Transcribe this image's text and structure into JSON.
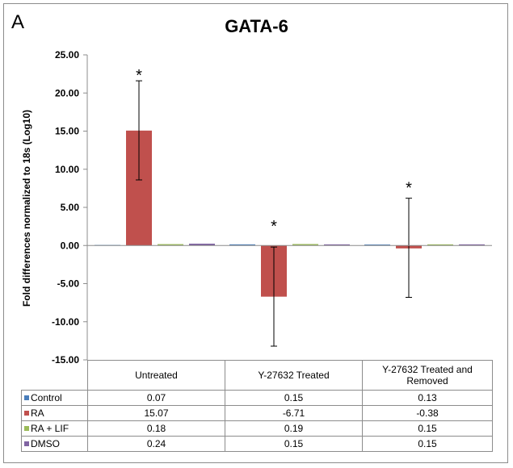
{
  "panel_letter": "A",
  "chart_data": {
    "type": "bar",
    "title": "GATA-6",
    "xlabel": "",
    "ylabel": "Fold differences  normalized to 18s (Log10)",
    "ylim": [
      -15,
      25
    ],
    "yticks": [
      "25.00",
      "20.00",
      "15.00",
      "10.00",
      "5.00",
      "0.00",
      "-5.00",
      "-10.00",
      "-15.00"
    ],
    "yticks_values": [
      25,
      20,
      15,
      10,
      5,
      0,
      -5,
      -10,
      -15
    ],
    "categories": [
      "Untreated",
      "Y-27632 Treated",
      "Y-27632 Treated and Removed"
    ],
    "series": [
      {
        "name": "Control",
        "color": "#4a7ebb",
        "values": [
          0.07,
          0.15,
          0.13
        ],
        "values_text": [
          "0.07",
          "0.15",
          "0.13"
        ]
      },
      {
        "name": "RA",
        "color": "#c0504d",
        "values": [
          15.07,
          -6.71,
          -0.38
        ],
        "values_text": [
          "15.07",
          "-6.71",
          "-0.38"
        ],
        "error": [
          [
            8.6,
            21.6
          ],
          [
            -13.2,
            -0.2
          ],
          [
            -6.8,
            6.2
          ]
        ]
      },
      {
        "name": "RA + LIF",
        "color": "#9bbb59",
        "values": [
          0.18,
          0.19,
          0.15
        ],
        "values_text": [
          "0.18",
          "0.19",
          "0.15"
        ]
      },
      {
        "name": "DMSO",
        "color": "#8064a2",
        "values": [
          0.24,
          0.15,
          0.15
        ],
        "values_text": [
          "0.24",
          "0.15",
          "0.15"
        ]
      }
    ],
    "annotations": [
      {
        "text": "*",
        "category": 0,
        "y": 22.8
      },
      {
        "text": "*",
        "category": 1,
        "y": 3.0
      },
      {
        "text": "*",
        "category": 2,
        "y": 8.0
      }
    ],
    "legend": "data-table"
  }
}
